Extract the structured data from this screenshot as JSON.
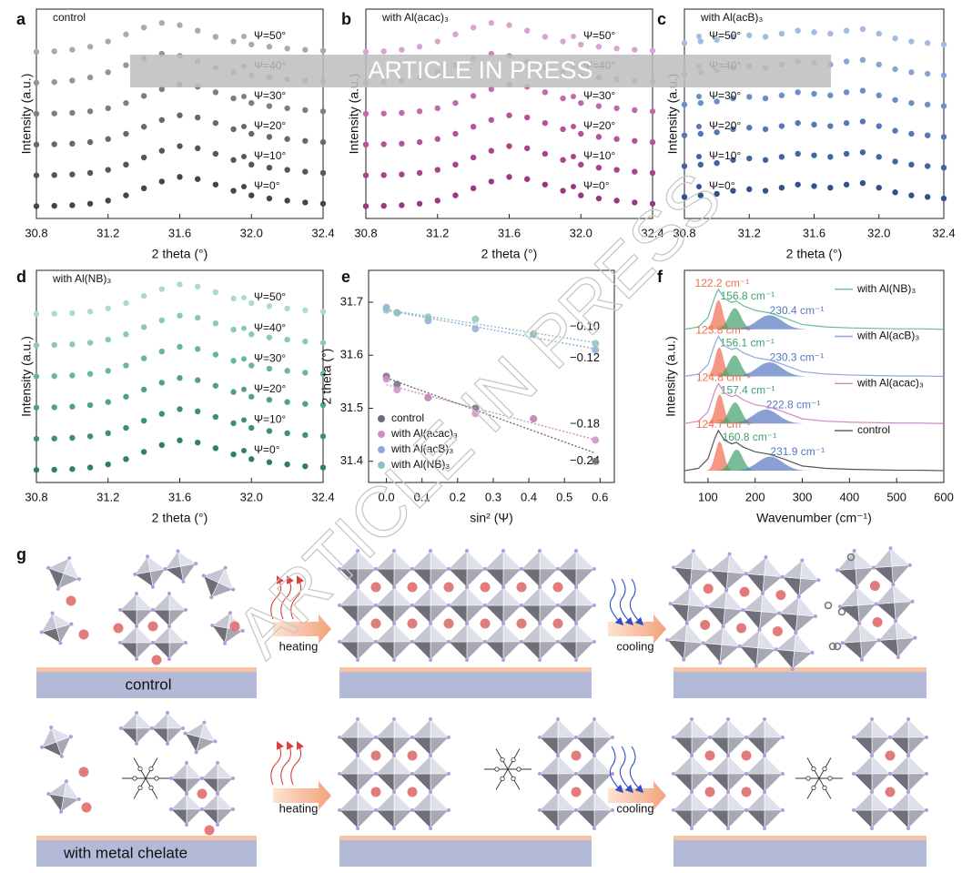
{
  "chart_data": [
    {
      "panel": "a",
      "type": "scatter",
      "label": "control",
      "xlabel": "2 theta (°)",
      "ylabel": "Intensity (a.u.)",
      "legend": "right",
      "x": [
        30.8,
        30.9,
        31.0,
        31.1,
        31.2,
        31.3,
        31.4,
        31.5,
        31.6,
        31.7,
        31.8,
        31.9,
        32.0,
        32.1,
        32.2,
        32.3,
        32.4
      ],
      "xlim": [
        30.8,
        32.4
      ],
      "xticks": [
        30.8,
        31.2,
        31.6,
        {
          "value": 32,
          "label": "32.0"
        },
        32.4
      ],
      "ylim": [
        -0.4,
        6.4
      ],
      "series": [
        {
          "name": "Ψ=50°",
          "color": "#a9a9b3",
          "values": [
            5.01,
            5.03,
            5.08,
            5.18,
            5.35,
            5.58,
            5.8,
            5.95,
            5.88,
            5.7,
            5.5,
            5.35,
            5.25,
            5.18,
            5.12,
            5.08,
            5.05
          ]
        },
        {
          "name": "Ψ=40°",
          "color": "#94949f",
          "values": [
            4.01,
            4.03,
            4.08,
            4.18,
            4.35,
            4.58,
            4.8,
            4.95,
            4.88,
            4.7,
            4.5,
            4.35,
            4.25,
            4.18,
            4.12,
            4.08,
            4.05
          ]
        },
        {
          "name": "Ψ=30°",
          "color": "#7d7d89",
          "values": [
            3,
            3.01,
            3.03,
            3.08,
            3.18,
            3.35,
            3.58,
            3.8,
            3.95,
            3.88,
            3.7,
            3.5,
            3.35,
            3.25,
            3.18,
            3.12,
            3.08
          ]
        },
        {
          "name": "Ψ=20°",
          "color": "#676773",
          "values": [
            2,
            2.01,
            2.03,
            2.08,
            2.18,
            2.35,
            2.58,
            2.8,
            2.95,
            2.88,
            2.7,
            2.5,
            2.35,
            2.25,
            2.18,
            2.12,
            2.08
          ]
        },
        {
          "name": "Ψ=10°",
          "color": "#55555f",
          "values": [
            1,
            1.01,
            1.03,
            1.08,
            1.18,
            1.35,
            1.58,
            1.8,
            1.95,
            1.88,
            1.7,
            1.5,
            1.35,
            1.25,
            1.18,
            1.12,
            1.08
          ]
        },
        {
          "name": "Ψ=0°",
          "color": "#44444e",
          "values": [
            0,
            0.01,
            0.03,
            0.08,
            0.18,
            0.35,
            0.58,
            0.8,
            0.95,
            0.88,
            0.7,
            0.5,
            0.35,
            0.25,
            0.18,
            0.12,
            0.08
          ]
        }
      ]
    },
    {
      "panel": "b",
      "type": "scatter",
      "label": "with Al(acac)₃",
      "xlabel": "2 theta (°)",
      "ylabel": "Intensity (a.u.)",
      "legend": "right",
      "x": [
        30.8,
        30.9,
        31.0,
        31.1,
        31.2,
        31.3,
        31.4,
        31.5,
        31.6,
        31.7,
        31.8,
        31.9,
        32.0,
        32.1,
        32.2,
        32.3,
        32.4
      ],
      "xlim": [
        30.8,
        32.4
      ],
      "xticks": [
        30.8,
        31.2,
        31.6,
        {
          "value": 32,
          "label": "32.0"
        },
        32.4
      ],
      "ylim": [
        -0.4,
        6.4
      ],
      "series": [
        {
          "name": "Ψ=50°",
          "color": "#d9a4d0",
          "values": [
            5.01,
            5.03,
            5.08,
            5.18,
            5.35,
            5.58,
            5.8,
            5.95,
            5.88,
            5.7,
            5.5,
            5.35,
            5.25,
            5.18,
            5.12,
            5.08,
            5.05
          ]
        },
        {
          "name": "Ψ=40°",
          "color": "#cc86bd",
          "values": [
            4.01,
            4.03,
            4.08,
            4.18,
            4.35,
            4.58,
            4.8,
            4.95,
            4.88,
            4.7,
            4.5,
            4.35,
            4.25,
            4.18,
            4.12,
            4.08,
            4.05
          ]
        },
        {
          "name": "Ψ=30°",
          "color": "#bf6aab",
          "values": [
            3,
            3.01,
            3.03,
            3.08,
            3.18,
            3.35,
            3.58,
            3.8,
            3.95,
            3.88,
            3.7,
            3.5,
            3.35,
            3.25,
            3.18,
            3.12,
            3.08
          ]
        },
        {
          "name": "Ψ=20°",
          "color": "#b4529a",
          "values": [
            2,
            2.01,
            2.03,
            2.08,
            2.18,
            2.35,
            2.58,
            2.8,
            2.95,
            2.88,
            2.7,
            2.5,
            2.35,
            2.25,
            2.18,
            2.12,
            2.08
          ]
        },
        {
          "name": "Ψ=10°",
          "color": "#a9438c",
          "values": [
            1,
            1.01,
            1.03,
            1.08,
            1.18,
            1.35,
            1.58,
            1.8,
            1.95,
            1.88,
            1.7,
            1.5,
            1.35,
            1.25,
            1.18,
            1.12,
            1.08
          ]
        },
        {
          "name": "Ψ=0°",
          "color": "#9b3680",
          "values": [
            0,
            0.01,
            0.03,
            0.08,
            0.18,
            0.35,
            0.58,
            0.8,
            0.95,
            0.88,
            0.7,
            0.5,
            0.35,
            0.25,
            0.18,
            0.12,
            0.08
          ]
        }
      ]
    },
    {
      "panel": "c",
      "type": "scatter",
      "label": "with Al(acB)₃",
      "xlabel": "2 theta (°)",
      "ylabel": "Intensity (a.u.)",
      "legend": "left",
      "x": [
        30.8,
        30.9,
        31.0,
        31.1,
        31.2,
        31.3,
        31.4,
        31.5,
        31.6,
        31.7,
        31.8,
        31.9,
        32.0,
        32.1,
        32.2,
        32.3,
        32.4
      ],
      "xlim": [
        30.8,
        32.4
      ],
      "xticks": [
        30.8,
        31.2,
        31.6,
        {
          "value": 32,
          "label": "32.0"
        },
        32.4
      ],
      "ylim": [
        -0.4,
        6.4
      ],
      "series": [
        {
          "name": "Ψ=50°",
          "color": "#a3bbe3",
          "values": [
            5.3,
            5.35,
            5.4,
            5.5,
            5.55,
            5.5,
            5.6,
            5.7,
            5.65,
            5.6,
            5.7,
            5.75,
            5.6,
            5.45,
            5.35,
            5.3,
            5.25
          ]
        },
        {
          "name": "Ψ=40°",
          "color": "#87a4d6",
          "values": [
            4.3,
            4.35,
            4.4,
            4.5,
            4.55,
            4.5,
            4.6,
            4.7,
            4.65,
            4.6,
            4.7,
            4.75,
            4.6,
            4.45,
            4.35,
            4.3,
            4.25
          ]
        },
        {
          "name": "Ψ=30°",
          "color": "#6d8dc6",
          "values": [
            3.3,
            3.35,
            3.4,
            3.5,
            3.55,
            3.5,
            3.6,
            3.7,
            3.65,
            3.6,
            3.7,
            3.75,
            3.6,
            3.45,
            3.35,
            3.3,
            3.25
          ]
        },
        {
          "name": "Ψ=20°",
          "color": "#5577b3",
          "values": [
            2.3,
            2.35,
            2.4,
            2.5,
            2.55,
            2.5,
            2.6,
            2.7,
            2.65,
            2.6,
            2.7,
            2.75,
            2.6,
            2.45,
            2.35,
            2.3,
            2.25
          ]
        },
        {
          "name": "Ψ=10°",
          "color": "#42649f",
          "values": [
            1.3,
            1.35,
            1.4,
            1.5,
            1.55,
            1.5,
            1.6,
            1.7,
            1.65,
            1.6,
            1.7,
            1.75,
            1.6,
            1.45,
            1.35,
            1.3,
            1.25
          ]
        },
        {
          "name": "Ψ=0°",
          "color": "#33528a",
          "values": [
            0.3,
            0.35,
            0.4,
            0.5,
            0.55,
            0.5,
            0.6,
            0.7,
            0.65,
            0.6,
            0.7,
            0.75,
            0.6,
            0.45,
            0.35,
            0.3,
            0.25
          ]
        }
      ]
    },
    {
      "panel": "d",
      "type": "scatter",
      "label": "with Al(NB)₃",
      "xlabel": "2 theta (°)",
      "ylabel": "Intensity (a.u.)",
      "legend": "right",
      "x": [
        30.8,
        30.9,
        31.0,
        31.1,
        31.2,
        31.3,
        31.4,
        31.5,
        31.6,
        31.7,
        31.8,
        31.9,
        32.0,
        32.1,
        32.2,
        32.3,
        32.4
      ],
      "xlim": [
        30.8,
        32.4
      ],
      "xticks": [
        30.8,
        31.2,
        31.6,
        {
          "value": 32,
          "label": "32.0"
        },
        32.4
      ],
      "ylim": [
        -0.4,
        6.4
      ],
      "series": [
        {
          "name": "Ψ=50°",
          "color": "#acd9d0",
          "values": [
            5,
            5.01,
            5.03,
            5.08,
            5.18,
            5.35,
            5.58,
            5.8,
            5.95,
            5.88,
            5.7,
            5.5,
            5.35,
            5.25,
            5.18,
            5.12,
            5.08
          ]
        },
        {
          "name": "Ψ=40°",
          "color": "#8ac7bc",
          "values": [
            4,
            4.01,
            4.03,
            4.08,
            4.18,
            4.35,
            4.58,
            4.8,
            4.95,
            4.88,
            4.7,
            4.5,
            4.35,
            4.25,
            4.18,
            4.12,
            4.08
          ]
        },
        {
          "name": "Ψ=30°",
          "color": "#6bb3a6",
          "values": [
            3,
            3.01,
            3.03,
            3.08,
            3.18,
            3.35,
            3.58,
            3.8,
            3.95,
            3.88,
            3.7,
            3.5,
            3.35,
            3.25,
            3.18,
            3.12,
            3.08
          ]
        },
        {
          "name": "Ψ=20°",
          "color": "#529f91",
          "values": [
            2,
            2.01,
            2.03,
            2.08,
            2.18,
            2.35,
            2.58,
            2.8,
            2.95,
            2.88,
            2.7,
            2.5,
            2.35,
            2.25,
            2.18,
            2.12,
            2.08
          ]
        },
        {
          "name": "Ψ=10°",
          "color": "#3f8d80",
          "values": [
            1,
            1.01,
            1.03,
            1.08,
            1.18,
            1.35,
            1.58,
            1.8,
            1.95,
            1.88,
            1.7,
            1.5,
            1.35,
            1.25,
            1.18,
            1.12,
            1.08
          ]
        },
        {
          "name": "Ψ=0°",
          "color": "#317c70",
          "values": [
            0,
            0.01,
            0.03,
            0.08,
            0.18,
            0.35,
            0.58,
            0.8,
            0.95,
            0.88,
            0.7,
            0.5,
            0.35,
            0.25,
            0.18,
            0.12,
            0.08
          ]
        }
      ]
    },
    {
      "panel": "e",
      "type": "scatter",
      "fit": true,
      "xlabel": "sin² (Ψ)",
      "ylabel": "2 theta (°)",
      "legend": "lower left",
      "x": [
        0,
        0.03,
        0.117,
        0.25,
        0.413,
        0.587
      ],
      "xlim": [
        -0.05,
        0.64
      ],
      "xticks": [
        {
          "value": 0,
          "label": "0.0"
        },
        0.1,
        0.2,
        0.3,
        0.4,
        0.5,
        0.6
      ],
      "ylim": [
        31.36,
        31.76
      ],
      "yticks": [
        31.4,
        31.5,
        31.6,
        31.7
      ],
      "series": [
        {
          "name": "control",
          "color": "#6c6c7a",
          "slope_label": "−0.24",
          "values": [
            31.56,
            31.545,
            31.52,
            31.5,
            31.48,
            31.4
          ]
        },
        {
          "name": "with Al(acac)₃",
          "color": "#cf8fc6",
          "slope_label": "−0.18",
          "values": [
            31.555,
            31.535,
            31.52,
            31.49,
            31.48,
            31.44
          ]
        },
        {
          "name": "with Al(acB)₃",
          "color": "#92aad8",
          "slope_label": "−0.12",
          "values": [
            31.69,
            31.68,
            31.665,
            31.65,
            31.64,
            31.61
          ]
        },
        {
          "name": "with Al(NB)₃",
          "color": "#8ec2bc",
          "slope_label": "−0.10",
          "values": [
            31.685,
            31.68,
            31.672,
            31.668,
            31.64,
            31.622
          ]
        }
      ]
    },
    {
      "panel": "f",
      "type": "line",
      "xlabel": "Wavenumber (cm⁻¹)",
      "ylabel": "Intensity (a.u.)",
      "legend": "right",
      "x": [
        50,
        80,
        100,
        115,
        122,
        135,
        150,
        160,
        175,
        200,
        230,
        260,
        300,
        350,
        400,
        450,
        500,
        550,
        600
      ],
      "xlim": [
        50,
        600
      ],
      "xticks": [
        100,
        200,
        300,
        400,
        500,
        600
      ],
      "ylim": [
        -0.2,
        4.3
      ],
      "peak_colors": [
        "#ef6b4f",
        "#3f9f6c",
        "#5577c0"
      ],
      "series": [
        {
          "name": "with Al(NB)₃",
          "color": "#6cb9a0",
          "values": [
            3.05,
            3.1,
            3.3,
            3.75,
            3.9,
            3.7,
            3.62,
            3.65,
            3.55,
            3.45,
            3.4,
            3.3,
            3.15,
            3.1,
            3.08,
            3.07,
            3.06,
            3.06,
            3.05
          ],
          "peaks": [
            {
              "value": 122.2,
              "label": "122.2 cm⁻¹"
            },
            {
              "value": 156.8,
              "label": "156.8 cm⁻¹"
            },
            {
              "value": 230.4,
              "label": "230.4 cm⁻¹"
            }
          ]
        },
        {
          "name": "with Al(acB)₃",
          "color": "#8fa8d6",
          "values": [
            2.05,
            2.1,
            2.3,
            2.75,
            2.9,
            2.7,
            2.62,
            2.65,
            2.55,
            2.45,
            2.4,
            2.3,
            2.15,
            2.1,
            2.08,
            2.07,
            2.06,
            2.06,
            2.05
          ],
          "peaks": [
            {
              "value": 123.8,
              "label": "123.8 cm⁻¹"
            },
            {
              "value": 156.1,
              "label": "156.1 cm⁻¹"
            },
            {
              "value": 230.3,
              "label": "230.3 cm⁻¹"
            }
          ]
        },
        {
          "name": "with Al(acac)₃",
          "color": "#d48ac6",
          "values": [
            1.05,
            1.1,
            1.3,
            1.75,
            1.9,
            1.7,
            1.62,
            1.65,
            1.55,
            1.45,
            1.4,
            1.3,
            1.15,
            1.1,
            1.08,
            1.07,
            1.06,
            1.06,
            1.05
          ],
          "peaks": [
            {
              "value": 124.8,
              "label": "124.8 cm⁻¹"
            },
            {
              "value": 157.4,
              "label": "157.4 cm⁻¹"
            },
            {
              "value": 222.8,
              "label": "222.8 cm⁻¹"
            }
          ]
        },
        {
          "name": "control",
          "color": "#555555",
          "values": [
            0.05,
            0.1,
            0.3,
            0.75,
            0.9,
            0.7,
            0.62,
            0.65,
            0.55,
            0.45,
            0.4,
            0.3,
            0.15,
            0.1,
            0.08,
            0.07,
            0.06,
            0.06,
            0.05
          ],
          "peaks": [
            {
              "value": 124.7,
              "label": "124.7 cm⁻¹"
            },
            {
              "value": 160.8,
              "label": "160.8 cm⁻¹"
            },
            {
              "value": 231.9,
              "label": "231.9 cm⁻¹"
            }
          ]
        }
      ]
    }
  ],
  "diagram": {
    "panel": "g",
    "rows": [
      {
        "label": "control",
        "steps": [
          "heating",
          "cooling"
        ]
      },
      {
        "label": "with metal chelate",
        "steps": [
          "heating",
          "cooling"
        ]
      }
    ]
  },
  "watermark": "ARTICLE IN PRESS"
}
